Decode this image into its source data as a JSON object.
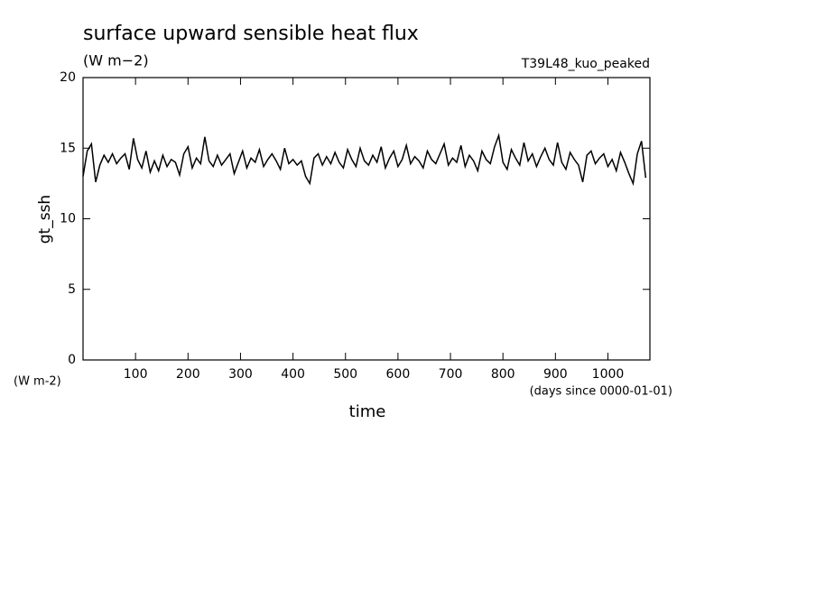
{
  "chart_data": {
    "type": "line",
    "title": "surface upward sensible heat flux",
    "subtitle": "(W m−2)",
    "annotation": "T39L48_kuo_peaked",
    "ylabel": "gt_ssh",
    "yunit": "(W m-2)",
    "xunit": "(days since 0000-01-01)",
    "xlabel": "time",
    "xlim": [
      0,
      1080
    ],
    "ylim": [
      0,
      20
    ],
    "xticks": [
      100,
      200,
      300,
      400,
      500,
      600,
      700,
      800,
      900,
      1000
    ],
    "yticks": [
      0,
      5,
      10,
      15,
      20
    ],
    "x": [
      0,
      8,
      16,
      24,
      32,
      40,
      48,
      56,
      64,
      72,
      80,
      88,
      96,
      104,
      112,
      120,
      128,
      136,
      144,
      152,
      160,
      168,
      176,
      184,
      192,
      200,
      208,
      216,
      224,
      232,
      240,
      248,
      256,
      264,
      272,
      280,
      288,
      296,
      304,
      312,
      320,
      328,
      336,
      344,
      352,
      360,
      368,
      376,
      384,
      392,
      400,
      408,
      416,
      424,
      432,
      440,
      448,
      456,
      464,
      472,
      480,
      488,
      496,
      504,
      512,
      520,
      528,
      536,
      544,
      552,
      560,
      568,
      576,
      584,
      592,
      600,
      608,
      616,
      624,
      632,
      640,
      648,
      656,
      664,
      672,
      680,
      688,
      696,
      704,
      712,
      720,
      728,
      736,
      744,
      752,
      760,
      768,
      776,
      784,
      792,
      800,
      808,
      816,
      824,
      832,
      840,
      848,
      856,
      864,
      872,
      880,
      888,
      896,
      904,
      912,
      920,
      928,
      936,
      944,
      952,
      960,
      968,
      976,
      984,
      992,
      1000,
      1008,
      1016,
      1024,
      1032,
      1040,
      1048,
      1056,
      1064,
      1072
    ],
    "series": [
      {
        "name": "gt_ssh",
        "color": "#000000",
        "values": [
          13.0,
          14.8,
          15.3,
          12.6,
          13.8,
          14.5,
          14.0,
          14.6,
          13.9,
          14.3,
          14.6,
          13.5,
          15.7,
          14.2,
          13.6,
          14.8,
          13.3,
          14.1,
          13.4,
          14.5,
          13.7,
          14.2,
          14.0,
          13.1,
          14.6,
          15.1,
          13.6,
          14.3,
          13.9,
          15.8,
          14.1,
          13.7,
          14.5,
          13.8,
          14.2,
          14.6,
          13.2,
          14.0,
          14.8,
          13.6,
          14.3,
          14.0,
          14.9,
          13.7,
          14.2,
          14.6,
          14.1,
          13.5,
          15.0,
          13.9,
          14.2,
          13.8,
          14.1,
          13.0,
          12.5,
          14.3,
          14.6,
          13.8,
          14.4,
          13.9,
          14.7,
          14.0,
          13.6,
          14.9,
          14.2,
          13.7,
          15.0,
          14.1,
          13.8,
          14.5,
          14.0,
          15.1,
          13.6,
          14.3,
          14.8,
          13.7,
          14.2,
          15.2,
          13.9,
          14.4,
          14.1,
          13.6,
          14.8,
          14.2,
          13.9,
          14.6,
          15.3,
          13.8,
          14.3,
          14.0,
          15.2,
          13.7,
          14.5,
          14.1,
          13.4,
          14.8,
          14.2,
          13.9,
          15.1,
          15.9,
          14.0,
          13.5,
          14.9,
          14.3,
          13.8,
          15.4,
          14.1,
          14.6,
          13.7,
          14.4,
          15.0,
          14.2,
          13.8,
          15.4,
          14.0,
          13.5,
          14.7,
          14.2,
          13.8,
          12.6,
          14.5,
          14.8,
          13.9,
          14.3,
          14.6,
          13.7,
          14.2,
          13.4,
          14.7,
          14.0,
          13.2,
          12.5,
          14.6,
          15.5,
          12.9
        ]
      }
    ]
  }
}
